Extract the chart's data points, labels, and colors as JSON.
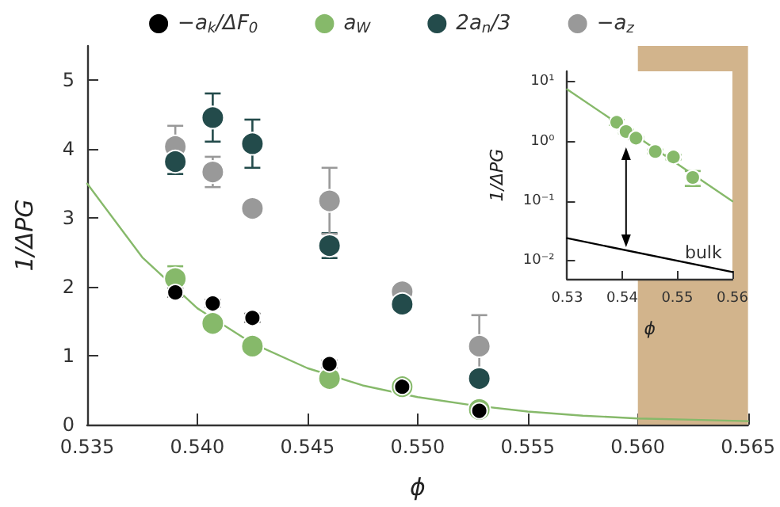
{
  "chart_data": [
    {
      "type": "scatter",
      "xlabel": "ϕ",
      "ylabel": "1/ΔPG",
      "xlim": [
        0.535,
        0.565
      ],
      "xticks": [
        {
          "value": 0.535,
          "label": "0.535"
        },
        {
          "value": 0.54,
          "label": "0.540"
        },
        {
          "value": 0.545,
          "label": "0.545"
        },
        {
          "value": 0.55,
          "label": "0.550"
        },
        {
          "value": 0.555,
          "label": "0.555"
        },
        {
          "value": 0.56,
          "label": "0.560"
        },
        {
          "value": 0.565,
          "label": "0.565"
        }
      ],
      "ylim": [
        0,
        5.5
      ],
      "yticks": [
        0,
        1,
        2,
        3,
        4,
        5
      ],
      "legend": "top",
      "marker": "circle",
      "grid": false,
      "bands": [
        {
          "axis": "x",
          "from": 0.56,
          "to": 0.565,
          "color": "#d2b48c"
        }
      ],
      "series": [
        {
          "name": "−a$_{k}$/ΔF$_{0}$",
          "color": "#000000",
          "x": [
            0.539,
            0.5407,
            0.5425,
            0.546,
            0.5493,
            0.5528
          ],
          "values": [
            1.92,
            1.76,
            1.55,
            0.88,
            0.55,
            0.2
          ],
          "errors": [
            0.06,
            0.05,
            0.06,
            0.05,
            null,
            null
          ]
        },
        {
          "name": "a$_{W}$",
          "color": "#86b96a",
          "x": [
            0.539,
            0.5407,
            0.5425,
            0.546,
            0.5493,
            0.5528
          ],
          "values": [
            2.12,
            1.47,
            1.14,
            0.67,
            0.55,
            0.22
          ],
          "errors": [
            0.18,
            0.1,
            0.05,
            0.05,
            null,
            null
          ]
        },
        {
          "name": "2a$_{n}$/3",
          "color": "#234b4b",
          "x": [
            0.539,
            0.5407,
            0.5425,
            0.546,
            0.5493,
            0.5528
          ],
          "values": [
            3.82,
            4.46,
            4.08,
            2.6,
            1.75,
            0.67
          ],
          "errors": [
            0.18,
            0.35,
            0.35,
            0.18,
            0.05,
            0.05
          ]
        },
        {
          "name": "−a$_{z}$",
          "color": "#999999",
          "x": [
            0.539,
            0.5407,
            0.5425,
            0.546,
            0.5493,
            0.5528
          ],
          "values": [
            4.04,
            3.67,
            3.14,
            3.25,
            1.93,
            1.14
          ],
          "errors": [
            0.3,
            0.22,
            0.05,
            0.48,
            0.05,
            0.45
          ]
        },
        {
          "type": "line",
          "color": "#86b96a",
          "marker": "none",
          "x": [
            0.535,
            0.5375,
            0.54,
            0.5425,
            0.545,
            0.5475,
            0.55,
            0.5525,
            0.555,
            0.5575,
            0.56,
            0.5625,
            0.565
          ],
          "values": [
            3.5,
            2.43,
            1.69,
            1.18,
            0.82,
            0.57,
            0.4,
            0.28,
            0.19,
            0.13,
            0.09,
            0.07,
            0.05
          ]
        }
      ]
    },
    {
      "type": "scatter",
      "xlabel": "ϕ",
      "ylabel": "1/ΔPG",
      "xlim": [
        0.53,
        0.56
      ],
      "xticks": [
        0.53,
        0.54,
        0.55,
        0.56
      ],
      "ylim": [
        0.005,
        15
      ],
      "yticks": [
        {
          "value": 0.01,
          "label": "10⁻²"
        },
        {
          "value": 0.1,
          "label": "10⁻¹"
        },
        {
          "value": 1,
          "label": "10⁰"
        },
        {
          "value": 10,
          "label": "10¹"
        }
      ],
      "log": "y",
      "marker": "circle",
      "grid": false,
      "series": [
        {
          "color": "#86b96a",
          "x": [
            0.539,
            0.5407,
            0.5425,
            0.546,
            0.5493,
            0.5528
          ],
          "values": [
            2.1,
            1.47,
            1.14,
            0.68,
            0.55,
            0.25
          ],
          "errors": [
            0.2,
            0.1,
            0.05,
            0.05,
            0.05,
            0.07
          ]
        },
        {
          "type": "line",
          "color": "#86b96a",
          "marker": "none",
          "x": [
            0.53,
            0.56
          ],
          "values": [
            7.5,
            0.1
          ]
        },
        {
          "type": "line",
          "name": "bulk",
          "color": "#000000",
          "marker": "none",
          "x": [
            0.53,
            0.56
          ],
          "values": [
            0.024,
            0.0065
          ]
        }
      ]
    }
  ]
}
